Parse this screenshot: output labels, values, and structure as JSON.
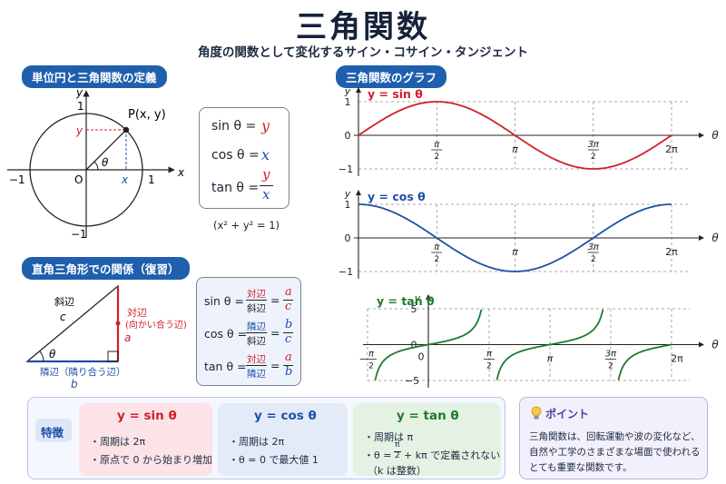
{
  "header": {
    "title": "三角関数",
    "subtitle": "角度の関数として変化するサイン・コサイン・タンジェント"
  },
  "unit_circle": {
    "section_label": "単位円と三角関数の定義",
    "point_label": "P(x, y)",
    "axis_x": "x",
    "axis_y": "y",
    "tick_one_x": "1",
    "tick_neg_one_x": "−1",
    "tick_one_y": "1",
    "tick_neg_one_y": "−1",
    "origin": "O",
    "angle": "θ",
    "proj_x": "x",
    "proj_y": "y"
  },
  "definitions": {
    "sin_lhs": "sin θ =",
    "sin_rhs": "y",
    "cos_lhs": "cos θ =",
    "cos_rhs": "x",
    "tan_lhs": "tan θ =",
    "tan_num": "y",
    "tan_den": "x",
    "identity": "(x² + y² = 1)"
  },
  "right_triangle": {
    "section_label": "直角三角形での関係（復習）",
    "hyp_name": "斜辺",
    "hyp_var": "c",
    "opp_name": "対辺",
    "opp_desc": "(向かい合う辺)",
    "opp_var": "a",
    "adj_name": "隣辺（隣り合う辺）",
    "adj_var": "b",
    "angle": "θ"
  },
  "ratios": {
    "sin": {
      "lhs": "sin θ =",
      "num": "対辺",
      "den": "斜辺",
      "eq": "=",
      "vnum": "a",
      "vden": "c"
    },
    "cos": {
      "lhs": "cos θ =",
      "num": "隣辺",
      "den": "斜辺",
      "eq": "=",
      "vnum": "b",
      "vden": "c"
    },
    "tan": {
      "lhs": "tan θ =",
      "num": "対辺",
      "den": "隣辺",
      "eq": "=",
      "vnum": "a",
      "vden": "b"
    }
  },
  "graphs": {
    "section_label": "三角関数のグラフ",
    "sin_label": "y = sin θ",
    "cos_label": "y = cos θ",
    "tan_label": "y = tan θ",
    "y_axis": "y",
    "x_axis": "θ",
    "ticks": {
      "one": "1",
      "zero": "0",
      "neg_one": "−1",
      "five": "5",
      "neg_five": "−5",
      "pi_half": "π",
      "pi": "π",
      "three_pi": "3π",
      "two_pi": "2π",
      "half_den": "2",
      "neg_pi": "−π"
    }
  },
  "chart_data": [
    {
      "type": "line",
      "title": "y = sin θ",
      "xlabel": "θ",
      "ylabel": "y",
      "xlim": [
        0,
        6.2832
      ],
      "ylim": [
        -1,
        1
      ],
      "x_ticks": [
        "π/2",
        "π",
        "3π/2",
        "2π"
      ],
      "series": [
        {
          "name": "y = sin θ",
          "color": "#d11f2a",
          "x": [
            0,
            0.785,
            1.571,
            2.356,
            3.142,
            3.927,
            4.712,
            5.498,
            6.283
          ],
          "values": [
            0,
            0.707,
            1,
            0.707,
            0,
            -0.707,
            -1,
            -0.707,
            0
          ]
        }
      ]
    },
    {
      "type": "line",
      "title": "y = cos θ",
      "xlabel": "θ",
      "ylabel": "y",
      "xlim": [
        0,
        6.2832
      ],
      "ylim": [
        -1,
        1
      ],
      "x_ticks": [
        "π/2",
        "π",
        "3π/2",
        "2π"
      ],
      "series": [
        {
          "name": "y = cos θ",
          "color": "#1f4fa8",
          "x": [
            0,
            0.785,
            1.571,
            2.356,
            3.142,
            3.927,
            4.712,
            5.498,
            6.283
          ],
          "values": [
            1,
            0.707,
            0,
            -0.707,
            -1,
            -0.707,
            0,
            0.707,
            1
          ]
        }
      ]
    },
    {
      "type": "line",
      "title": "y = tan θ",
      "xlabel": "θ",
      "ylabel": "y",
      "xlim": [
        -1.5708,
        6.2832
      ],
      "ylim": [
        -5,
        5
      ],
      "x_ticks": [
        "−π/2",
        "0",
        "π/2",
        "π",
        "3π/2",
        "2π"
      ],
      "asymptotes": [
        -1.5708,
        1.5708,
        4.7124
      ],
      "series": [
        {
          "name": "y = tan θ",
          "color": "#1f7a2d",
          "x": [
            -1.373,
            -0.785,
            0,
            0.785,
            1.373,
            1.768,
            2.356,
            3.142,
            3.927,
            4.515,
            4.91,
            5.498,
            6.283
          ],
          "values": [
            -5,
            -1,
            0,
            1,
            5,
            -5,
            -1,
            0,
            1,
            5,
            -5,
            -1,
            0
          ]
        }
      ]
    }
  ],
  "features": {
    "label": "特徴",
    "sin": {
      "title": "y = sin θ",
      "l1": "・周期は 2π",
      "l2": "・原点で 0 から始まり増加"
    },
    "cos": {
      "title": "y = cos θ",
      "l1": "・周期は 2π",
      "l2": "・θ = 0 で最大値 1"
    },
    "tan": {
      "title": "y = tan θ",
      "l1": "・周期は π",
      "l2a": "・θ =",
      "l2frac_num": "π",
      "l2frac_den": "2",
      "l2b": "+ kπ で定義されない",
      "l3": "（k は整数）"
    }
  },
  "point": {
    "icon": "lightbulb-icon",
    "title": "ポイント",
    "l1": "三角関数は、回転運動や波の変化など、",
    "l2": "自然や工学のさまざまな場面で使われる",
    "l3": "とても重要な関数です。"
  },
  "colors": {
    "sin": "#d11f2a",
    "cos": "#1f4fa8",
    "tan": "#1f7a2d",
    "accent": "#1f5fae"
  }
}
